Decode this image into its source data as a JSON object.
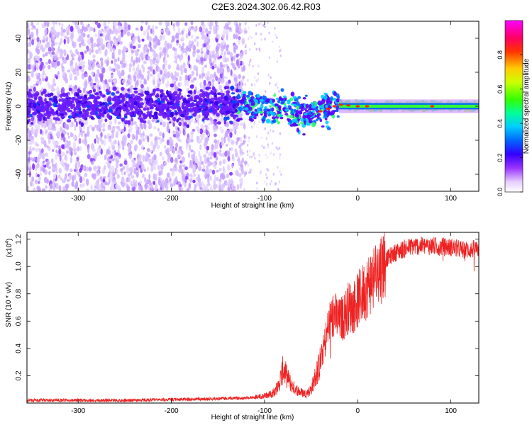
{
  "title": "C2E3.2024.302.06.42.R03",
  "chart_data": [
    {
      "type": "heatmap",
      "xlabel": "Height of straight line (km)",
      "ylabel": "Frequency (Hz)",
      "xlim": [
        -355,
        130
      ],
      "ylim": [
        -50,
        50
      ],
      "xticks": [
        "-300",
        "-200",
        "-100",
        "0",
        "100"
      ],
      "xtick_values": [
        -300,
        -200,
        -100,
        0,
        100
      ],
      "yticks": [
        "-40",
        "-20",
        "0",
        "20",
        "40"
      ],
      "ytick_values": [
        -40,
        -20,
        0,
        20,
        40
      ],
      "colorbar_label": "Normalized spectral amplitude",
      "colorbar_range": [
        0,
        1
      ],
      "colorbar_ticks": [
        "0.0",
        "0.2",
        "0.4",
        "0.6",
        "0.8"
      ],
      "colorbar_tick_values": [
        0,
        0.2,
        0.4,
        0.6,
        0.8
      ],
      "colormap": [
        "#ffffff",
        "#cc99ff",
        "#6600cc",
        "#0000ff",
        "#00ffff",
        "#00ff00",
        "#ffff00",
        "#ff0000",
        "#ff00ff"
      ],
      "band_center": [
        {
          "x": -355,
          "y": 0
        },
        {
          "x": -250,
          "y": 0
        },
        {
          "x": -150,
          "y": 1
        },
        {
          "x": -120,
          "y": 1
        },
        {
          "x": -100,
          "y": 0
        },
        {
          "x": -80,
          "y": -3
        },
        {
          "x": -60,
          "y": -5
        },
        {
          "x": -40,
          "y": -3
        },
        {
          "x": -20,
          "y": 1
        },
        {
          "x": 0,
          "y": 0
        },
        {
          "x": 130,
          "y": 0
        }
      ]
    },
    {
      "type": "line",
      "xlabel": "Height of straight line (km)",
      "ylabel": "SNR (10 * v/v)",
      "scale_label": "(x10",
      "scale_exponent": "4",
      "xlim": [
        -355,
        130
      ],
      "ylim": [
        0,
        1.25
      ],
      "xticks": [
        "-300",
        "-200",
        "-100",
        "0",
        "100"
      ],
      "xtick_values": [
        -300,
        -200,
        -100,
        0,
        100
      ],
      "yticks": [
        "0.2",
        "0.4",
        "0.6",
        "0.8",
        "1.0",
        "1.2"
      ],
      "ytick_values": [
        0.2,
        0.4,
        0.6,
        0.8,
        1.0,
        1.2
      ],
      "color": "#ee2222",
      "series": [
        {
          "x": [
            -355,
            -300,
            -250,
            -200,
            -160,
            -130,
            -115,
            -100,
            -92,
            -85,
            -80,
            -75,
            -70,
            -62,
            -55,
            -50,
            -45,
            -40,
            -35,
            -30,
            -25,
            -20,
            -15,
            -10,
            -5,
            0,
            10,
            20,
            30,
            40,
            50,
            60,
            80,
            100,
            115,
            130
          ],
          "y": [
            0.02,
            0.02,
            0.02,
            0.025,
            0.03,
            0.035,
            0.04,
            0.05,
            0.07,
            0.12,
            0.25,
            0.18,
            0.12,
            0.08,
            0.07,
            0.1,
            0.2,
            0.3,
            0.45,
            0.6,
            0.65,
            0.6,
            0.63,
            0.7,
            0.7,
            0.75,
            0.85,
            0.95,
            1.05,
            1.1,
            1.13,
            1.15,
            1.15,
            1.14,
            1.12,
            1.13
          ]
        }
      ]
    }
  ]
}
